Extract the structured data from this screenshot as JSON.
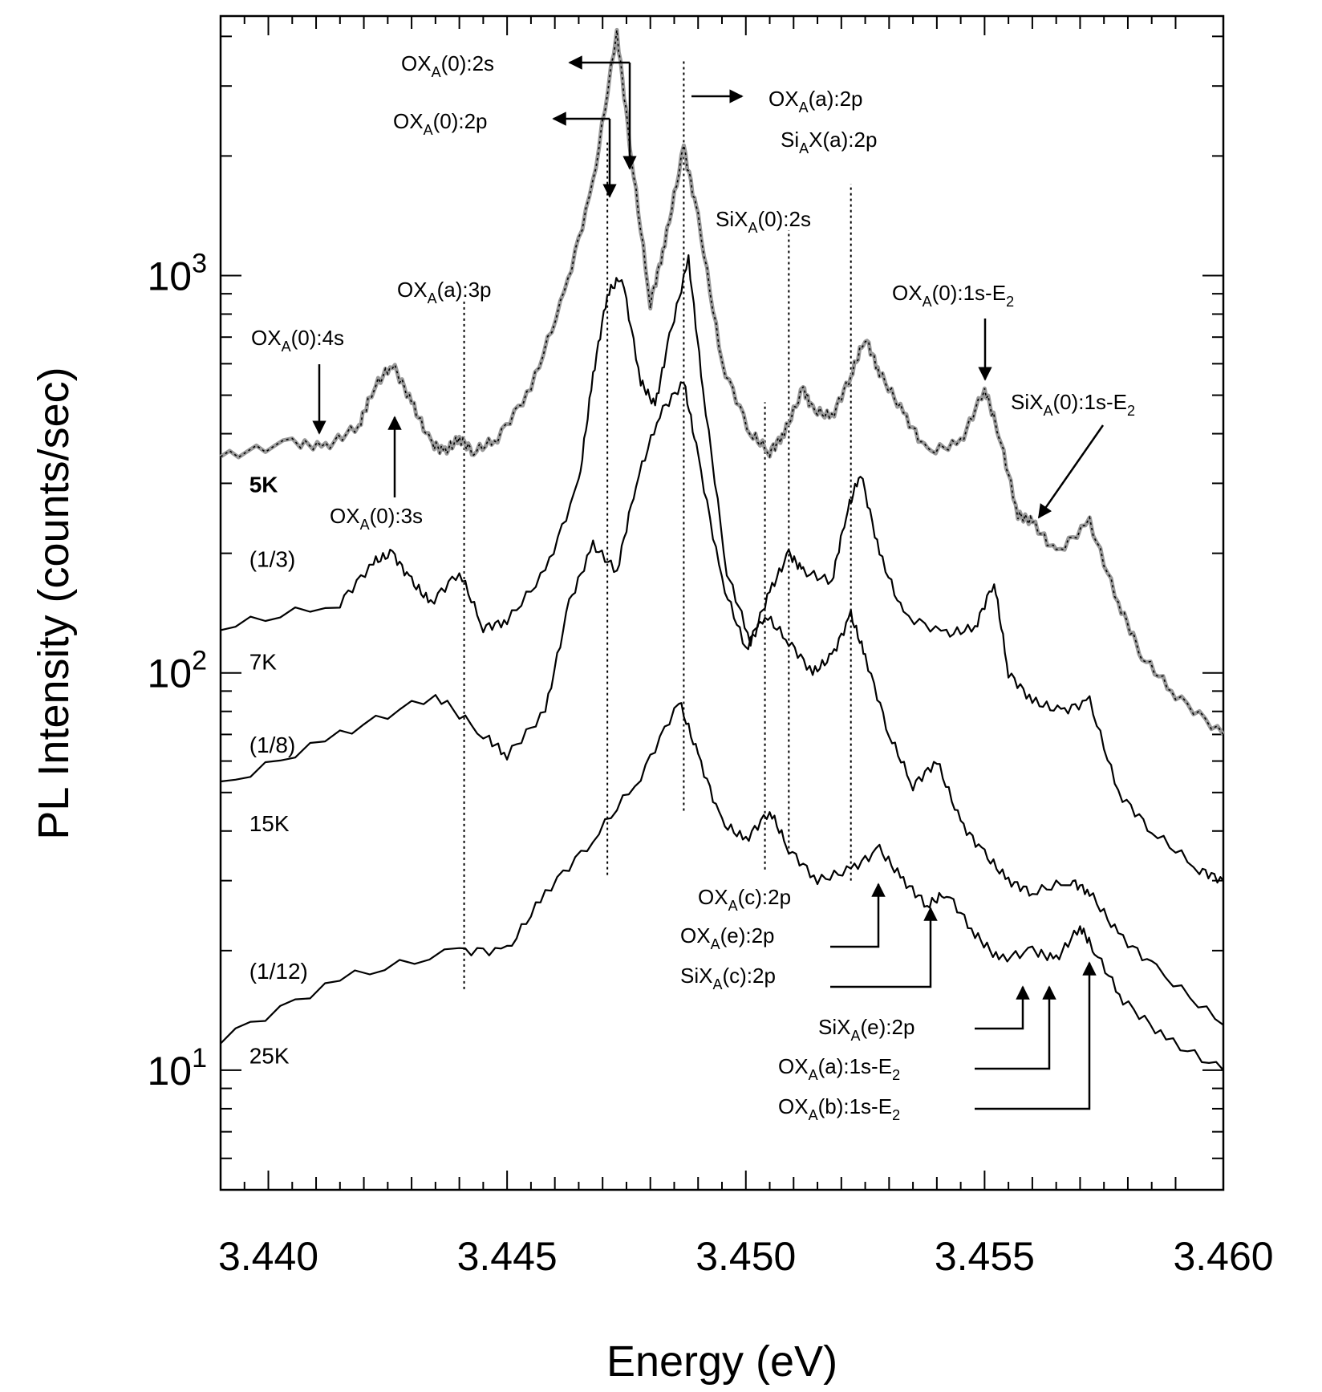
{
  "chart_data": {
    "type": "line",
    "title": "",
    "xlabel": "Energy (eV)",
    "ylabel": "PL Intensity (counts/sec)",
    "xlim": [
      3.439,
      3.46
    ],
    "ylim": [
      5,
      4500
    ],
    "yscale": "log",
    "grid": false,
    "x_ticks": [
      "3.440",
      "3.445",
      "3.450",
      "3.455",
      "3.460"
    ],
    "y_ticks": [
      {
        "base": "10",
        "exp": "1"
      },
      {
        "base": "10",
        "exp": "2"
      },
      {
        "base": "10",
        "exp": "3"
      }
    ],
    "series": [
      {
        "name": "5K",
        "color": "#9a9a9a",
        "points": [
          [
            3.439,
            350
          ],
          [
            3.4405,
            380
          ],
          [
            3.4412,
            370
          ],
          [
            3.4419,
            420
          ],
          [
            3.4422,
            520
          ],
          [
            3.4426,
            600
          ],
          [
            3.443,
            480
          ],
          [
            3.4434,
            380
          ],
          [
            3.4437,
            360
          ],
          [
            3.444,
            390
          ],
          [
            3.4443,
            360
          ],
          [
            3.4448,
            390
          ],
          [
            3.4455,
            520
          ],
          [
            3.4462,
            900
          ],
          [
            3.4468,
            1700
          ],
          [
            3.4473,
            4100
          ],
          [
            3.4476,
            2000
          ],
          [
            3.448,
            850
          ],
          [
            3.4483,
            1200
          ],
          [
            3.4487,
            2100
          ],
          [
            3.449,
            1400
          ],
          [
            3.4495,
            600
          ],
          [
            3.4501,
            400
          ],
          [
            3.4505,
            360
          ],
          [
            3.4508,
            400
          ],
          [
            3.4512,
            520
          ],
          [
            3.4514,
            460
          ],
          [
            3.4518,
            440
          ],
          [
            3.4522,
            560
          ],
          [
            3.4525,
            700
          ],
          [
            3.4528,
            570
          ],
          [
            3.4533,
            450
          ],
          [
            3.4538,
            360
          ],
          [
            3.4545,
            380
          ],
          [
            3.455,
            520
          ],
          [
            3.4553,
            400
          ],
          [
            3.4557,
            250
          ],
          [
            3.456,
            240
          ],
          [
            3.4565,
            200
          ],
          [
            3.4572,
            240
          ],
          [
            3.4578,
            150
          ],
          [
            3.4583,
            110
          ],
          [
            3.459,
            88
          ],
          [
            3.46,
            70
          ]
        ]
      },
      {
        "name": "7K",
        "color": "#000000",
        "points": [
          [
            3.439,
            130
          ],
          [
            3.4415,
            150
          ],
          [
            3.4422,
            190
          ],
          [
            3.4426,
            200
          ],
          [
            3.443,
            170
          ],
          [
            3.4434,
            150
          ],
          [
            3.444,
            180
          ],
          [
            3.4445,
            130
          ],
          [
            3.445,
            135
          ],
          [
            3.4458,
            180
          ],
          [
            3.4465,
            300
          ],
          [
            3.4468,
            560
          ],
          [
            3.4471,
            900
          ],
          [
            3.4474,
            1000
          ],
          [
            3.4478,
            540
          ],
          [
            3.4481,
            470
          ],
          [
            3.4484,
            700
          ],
          [
            3.4488,
            1100
          ],
          [
            3.4491,
            520
          ],
          [
            3.4496,
            180
          ],
          [
            3.4501,
            120
          ],
          [
            3.4505,
            160
          ],
          [
            3.4509,
            200
          ],
          [
            3.4512,
            180
          ],
          [
            3.4518,
            170
          ],
          [
            3.4521,
            250
          ],
          [
            3.4524,
            320
          ],
          [
            3.4528,
            200
          ],
          [
            3.4533,
            140
          ],
          [
            3.4542,
            125
          ],
          [
            3.4548,
            130
          ],
          [
            3.4552,
            170
          ],
          [
            3.4555,
            100
          ],
          [
            3.456,
            85
          ],
          [
            3.4566,
            80
          ],
          [
            3.4572,
            85
          ],
          [
            3.4578,
            50
          ],
          [
            3.4585,
            40
          ],
          [
            3.4595,
            32
          ],
          [
            3.46,
            30
          ]
        ]
      },
      {
        "name": "15K",
        "color": "#000000",
        "points": [
          [
            3.439,
            52
          ],
          [
            3.4415,
            70
          ],
          [
            3.4435,
            88
          ],
          [
            3.4445,
            70
          ],
          [
            3.445,
            62
          ],
          [
            3.4458,
            80
          ],
          [
            3.4463,
            150
          ],
          [
            3.4468,
            210
          ],
          [
            3.4473,
            180
          ],
          [
            3.4477,
            300
          ],
          [
            3.4482,
            450
          ],
          [
            3.4487,
            540
          ],
          [
            3.449,
            350
          ],
          [
            3.4495,
            170
          ],
          [
            3.45,
            115
          ],
          [
            3.4504,
            140
          ],
          [
            3.4509,
            120
          ],
          [
            3.4514,
            100
          ],
          [
            3.4518,
            110
          ],
          [
            3.4522,
            140
          ],
          [
            3.4525,
            110
          ],
          [
            3.453,
            70
          ],
          [
            3.4535,
            52
          ],
          [
            3.454,
            60
          ],
          [
            3.4545,
            42
          ],
          [
            3.455,
            35
          ],
          [
            3.4555,
            30
          ],
          [
            3.456,
            28
          ],
          [
            3.4568,
            30
          ],
          [
            3.4572,
            28
          ],
          [
            3.4578,
            22
          ],
          [
            3.4586,
            18
          ],
          [
            3.46,
            13
          ]
        ]
      },
      {
        "name": "25K",
        "color": "#000000",
        "points": [
          [
            3.439,
            12
          ],
          [
            3.4415,
            17
          ],
          [
            3.444,
            20
          ],
          [
            3.445,
            20
          ],
          [
            3.4458,
            28
          ],
          [
            3.4468,
            38
          ],
          [
            3.4478,
            55
          ],
          [
            3.4486,
            85
          ],
          [
            3.449,
            62
          ],
          [
            3.4495,
            42
          ],
          [
            3.45,
            38
          ],
          [
            3.4505,
            45
          ],
          [
            3.4509,
            36
          ],
          [
            3.4515,
            30
          ],
          [
            3.4522,
            32
          ],
          [
            3.4528,
            36
          ],
          [
            3.4533,
            30
          ],
          [
            3.4538,
            26
          ],
          [
            3.4542,
            28
          ],
          [
            3.4548,
            22
          ],
          [
            3.4553,
            19
          ],
          [
            3.456,
            20
          ],
          [
            3.4565,
            19
          ],
          [
            3.457,
            23
          ],
          [
            3.4573,
            20
          ],
          [
            3.4579,
            15
          ],
          [
            3.4588,
            12
          ],
          [
            3.46,
            10
          ]
        ]
      }
    ],
    "curve_labels": [
      {
        "text": "5K",
        "x": 3.4396,
        "y": 285,
        "color": "#9a9a9a",
        "bold": true
      },
      {
        "text": "(1/3)",
        "x": 3.4396,
        "y": 185
      },
      {
        "text": "7K",
        "x": 3.4396,
        "y": 102
      },
      {
        "text": "(1/8)",
        "x": 3.4396,
        "y": 63
      },
      {
        "text": "15K",
        "x": 3.4396,
        "y": 40
      },
      {
        "text": "(1/12)",
        "x": 3.4396,
        "y": 17
      },
      {
        "text": "25K",
        "x": 3.4396,
        "y": 10.4
      }
    ],
    "guide_lines": [
      {
        "x": 3.4441,
        "y0": 16,
        "y1": 860
      },
      {
        "x": 3.4471,
        "y0": 31,
        "y1": 2200
      },
      {
        "x": 3.4487,
        "y0": 45,
        "y1": 3500
      },
      {
        "x": 3.4504,
        "y0": 32,
        "y1": 480
      },
      {
        "x": 3.4509,
        "y0": 35,
        "y1": 1300
      },
      {
        "x": 3.4522,
        "y0": 30,
        "y1": 1700
      }
    ],
    "annotations": [
      {
        "parts": [
          [
            "OX",
            ""
          ],
          [
            "A",
            "sub"
          ],
          [
            "(0):2s",
            ""
          ]
        ]
      },
      {
        "parts": [
          [
            "OX",
            ""
          ],
          [
            "A",
            "sub"
          ],
          [
            "(0):2p",
            ""
          ]
        ]
      },
      {
        "parts": [
          [
            "OX",
            ""
          ],
          [
            "A",
            "sub"
          ],
          [
            "(a):2p",
            ""
          ]
        ]
      },
      {
        "parts": [
          [
            "Si",
            ""
          ],
          [
            "A",
            "sub"
          ],
          [
            "X(a):2p",
            ""
          ]
        ]
      },
      {
        "parts": [
          [
            "SiX",
            ""
          ],
          [
            "A",
            "sub"
          ],
          [
            "(0):2s",
            ""
          ]
        ]
      },
      {
        "parts": [
          [
            "OX",
            ""
          ],
          [
            "A",
            "sub"
          ],
          [
            "(a):3p",
            ""
          ]
        ]
      },
      {
        "parts": [
          [
            "OX",
            ""
          ],
          [
            "A",
            "sub"
          ],
          [
            "(0):1s-E",
            ""
          ],
          [
            "2",
            "sub"
          ]
        ]
      },
      {
        "parts": [
          [
            "OX",
            ""
          ],
          [
            "A",
            "sub"
          ],
          [
            "(0):4s",
            ""
          ]
        ]
      },
      {
        "parts": [
          [
            "SiX",
            ""
          ],
          [
            "A",
            "sub"
          ],
          [
            "(0):1s-E",
            ""
          ],
          [
            "2",
            "sub"
          ]
        ]
      },
      {
        "parts": [
          [
            "OX",
            ""
          ],
          [
            "A",
            "sub"
          ],
          [
            "(0):3s",
            ""
          ]
        ]
      },
      {
        "parts": [
          [
            "OX",
            ""
          ],
          [
            "A",
            "sub"
          ],
          [
            "(c):2p",
            ""
          ]
        ]
      },
      {
        "parts": [
          [
            "OX",
            ""
          ],
          [
            "A",
            "sub"
          ],
          [
            "(e):2p",
            ""
          ]
        ]
      },
      {
        "parts": [
          [
            "SiX",
            ""
          ],
          [
            "A",
            "sub"
          ],
          [
            "(c):2p",
            ""
          ]
        ]
      },
      {
        "parts": [
          [
            "SiX",
            ""
          ],
          [
            "A",
            "sub"
          ],
          [
            "(e):2p",
            ""
          ]
        ]
      },
      {
        "parts": [
          [
            "OX",
            ""
          ],
          [
            "A",
            "sub"
          ],
          [
            "(a):1s-E",
            ""
          ],
          [
            "2",
            "sub"
          ]
        ]
      },
      {
        "parts": [
          [
            "OX",
            ""
          ],
          [
            "A",
            "sub"
          ],
          [
            "(b):1s-E",
            ""
          ],
          [
            "2",
            "sub"
          ]
        ]
      }
    ]
  }
}
